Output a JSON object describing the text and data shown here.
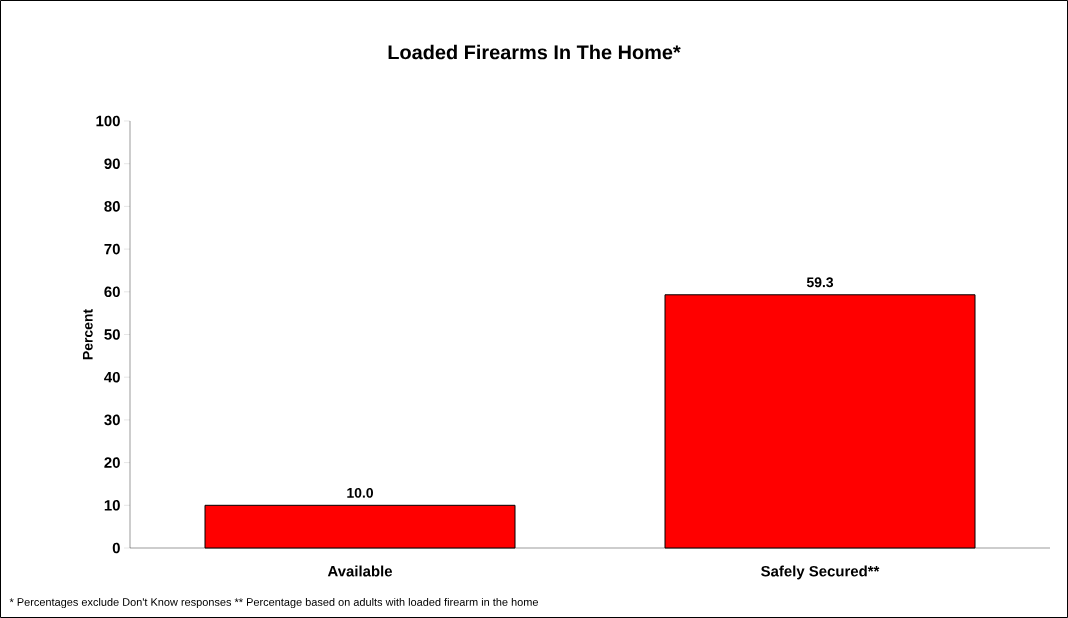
{
  "chart_data": {
    "type": "bar",
    "title": "Loaded Firearms In The Home*",
    "ylabel": "Percent",
    "categories": [
      "Available",
      "Safely Secured**"
    ],
    "values": [
      10.0,
      59.3
    ],
    "value_labels": [
      "10.0",
      "59.3"
    ],
    "color": "#ff0000",
    "ylim": [
      0,
      100
    ],
    "yticks": [
      0,
      10,
      20,
      30,
      40,
      50,
      60,
      70,
      80,
      90,
      100
    ],
    "grid": false,
    "annotations": [
      "* Percentages exclude Don't Know responses  ** Percentage based on adults with loaded firearm in the home"
    ]
  }
}
